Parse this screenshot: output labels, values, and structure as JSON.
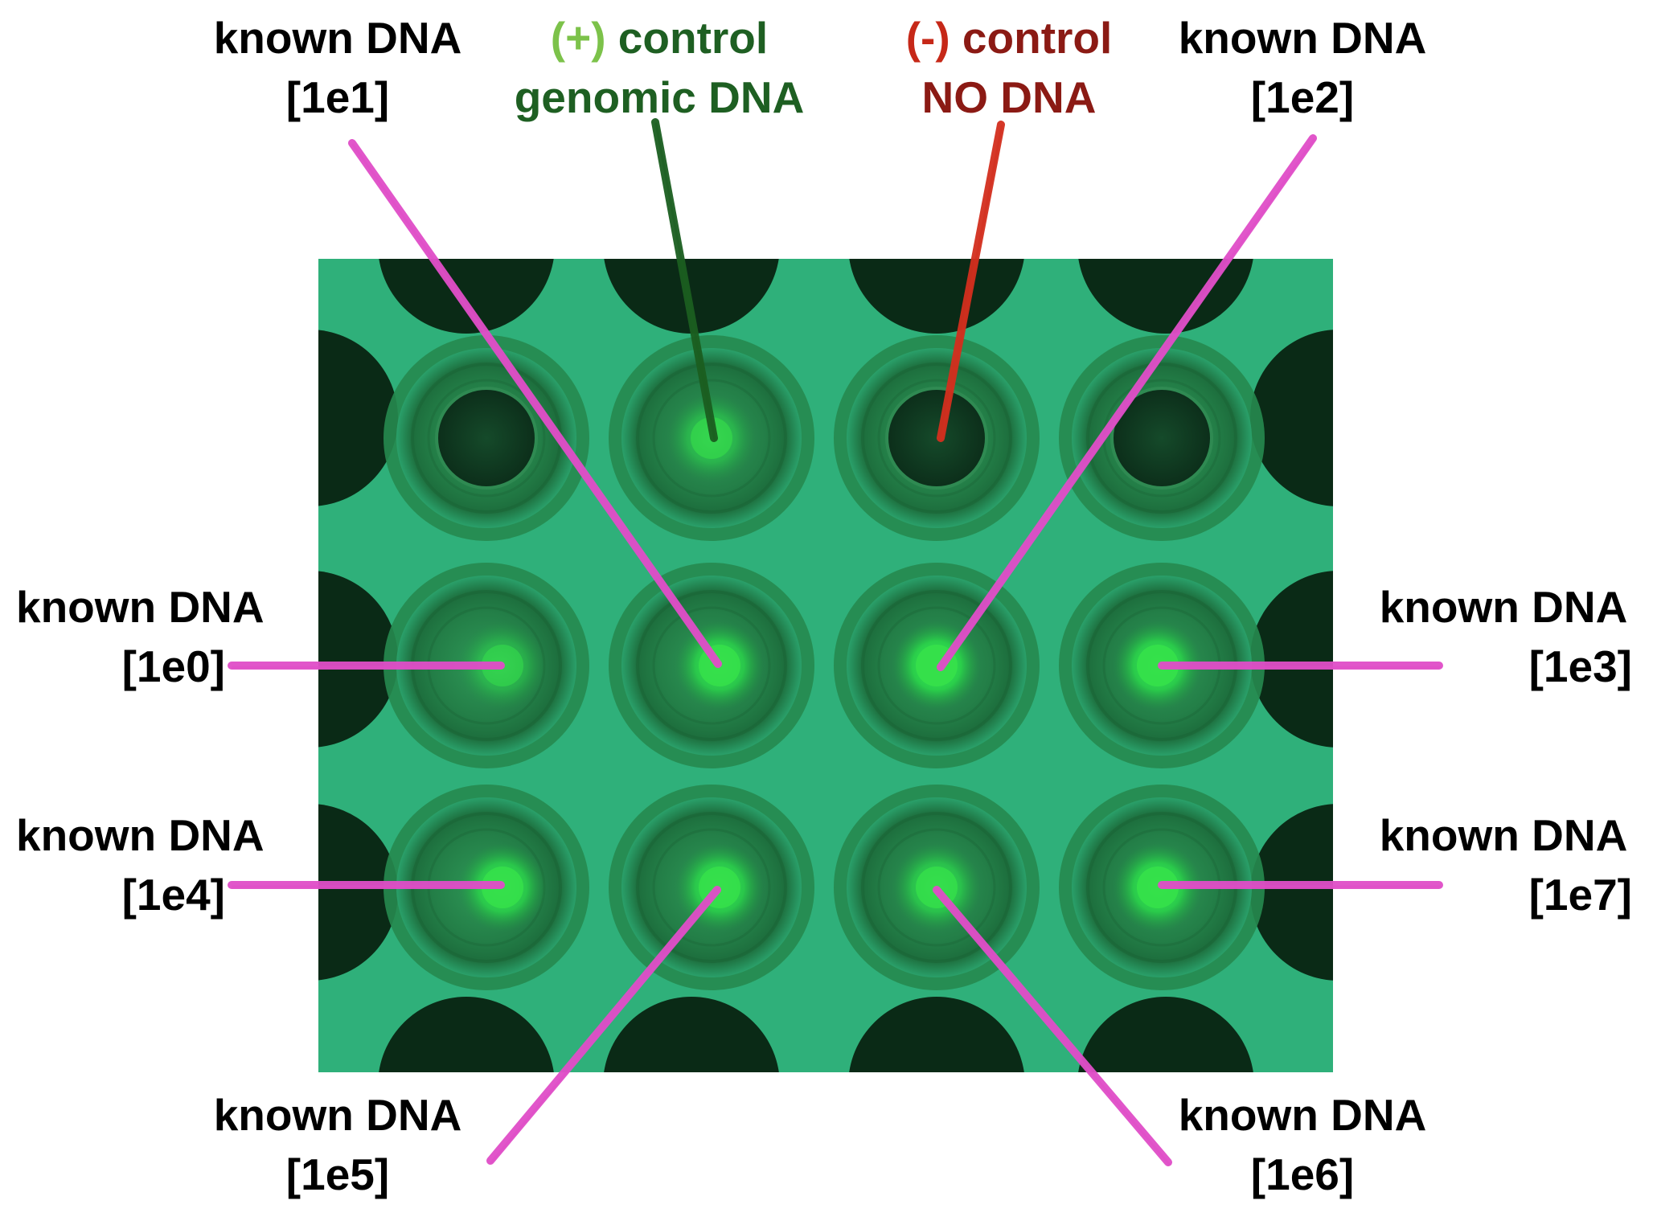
{
  "labels": {
    "top_1e1": {
      "line1": "known DNA",
      "line2": "[1e1]"
    },
    "top_pos": {
      "line1_sign": "(+)",
      "line1_rest": " control",
      "line2": "genomic DNA"
    },
    "top_neg": {
      "line1_sign": "(-)",
      "line1_rest": " control",
      "line2": "NO DNA"
    },
    "top_1e2": {
      "line1": "known DNA",
      "line2": "[1e2]"
    },
    "left_1e0": {
      "line1": "known DNA",
      "line2": "[1e0]"
    },
    "right_1e3": {
      "line1": "known DNA",
      "line2": "[1e3]"
    },
    "left_1e4": {
      "line1": "known DNA",
      "line2": "[1e4]"
    },
    "right_1e7": {
      "line1": "known DNA",
      "line2": "[1e7]"
    },
    "bottom_1e5": {
      "line1": "known DNA",
      "line2": "[1e5]"
    },
    "bottom_1e6": {
      "line1": "known DNA",
      "line2": "[1e6]"
    }
  },
  "colors": {
    "plate": "#2fb07a",
    "well_dark": "#0a2a16",
    "pointer_pink": "#e04ec8",
    "pointer_dark_green": "#1b5e20",
    "pointer_red": "#d32f1e",
    "text_light_green": "#7cc24a",
    "text_dark_green": "#1e5f22",
    "text_red": "#c62818",
    "text_dark_red": "#8b1a14",
    "glow": "#35e04a"
  },
  "wells": [
    {
      "id": "1e1",
      "glow": 0.0
    },
    {
      "id": "pos",
      "glow": 0.55
    },
    {
      "id": "neg",
      "glow": 0.0
    },
    {
      "id": "extra",
      "glow": 0.0
    },
    {
      "id": "1e0",
      "glow": 0.5
    },
    {
      "id": "1e1b",
      "glow": 0.85
    },
    {
      "id": "1e2",
      "glow": 0.95
    },
    {
      "id": "1e3",
      "glow": 0.9
    },
    {
      "id": "1e4",
      "glow": 0.85
    },
    {
      "id": "1e5",
      "glow": 0.85
    },
    {
      "id": "1e6",
      "glow": 0.75
    },
    {
      "id": "1e7",
      "glow": 0.9
    }
  ]
}
